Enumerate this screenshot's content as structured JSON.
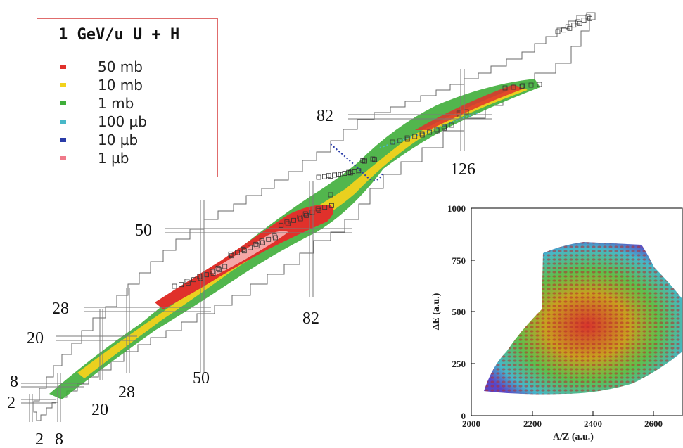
{
  "legend": {
    "title": "1 GeV/u U + H",
    "items": [
      {
        "label": "50 mb",
        "color": "#e0312b"
      },
      {
        "label": "10 mb",
        "color": "#f2d21c"
      },
      {
        "label": "1 mb",
        "color": "#3fae3a"
      },
      {
        "label": "100 µb",
        "color": "#48b8c8"
      },
      {
        "label": "10 µb",
        "color": "#2a3ca8"
      },
      {
        "label": "1 µb",
        "color": "#f07a8a"
      }
    ]
  },
  "chart_data": [
    {
      "type": "heatmap",
      "title": "1 GeV/u U + H",
      "description_axes": "nuclide chart (neutron number horizontal, proton number vertical)",
      "magic_numbers": {
        "proton": [
          "2",
          "8",
          "20",
          "28",
          "50",
          "82"
        ],
        "neutron": [
          "2",
          "8",
          "20",
          "28",
          "50",
          "82",
          "126"
        ]
      },
      "legend": [
        "50 mb",
        "10 mb",
        "1 mb",
        "100 µb",
        "10 µb",
        "1 µb"
      ]
    },
    {
      "type": "heatmap",
      "xlabel": "A/Z (a.u.)",
      "ylabel": "ΔE (a.u.)",
      "xlim": [
        2000,
        2700
      ],
      "ylim": [
        0,
        1000
      ],
      "xticks": [
        "2000",
        "2200",
        "2400",
        "2600"
      ],
      "yticks": [
        "0",
        "250",
        "500",
        "750",
        "1000"
      ]
    }
  ]
}
